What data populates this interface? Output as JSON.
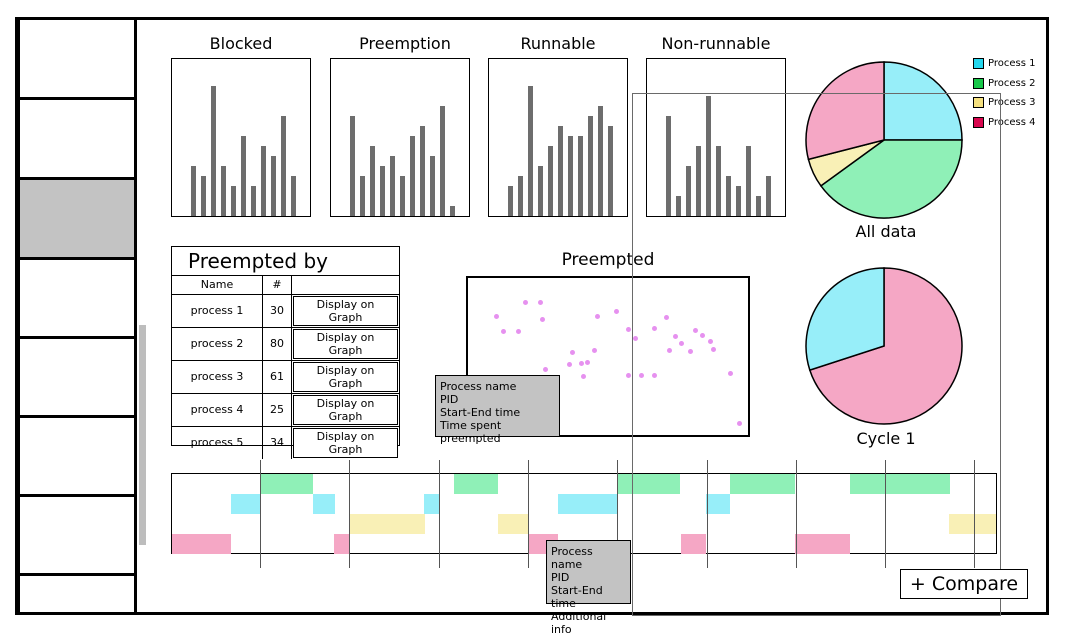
{
  "colors": {
    "process1": "#97eef9",
    "process2": "#8ff0b7",
    "process3": "#f9f0b6",
    "process4": "#f5a7c5",
    "legend1": "#24d7ee",
    "legend2": "#18c84a",
    "legend3": "#f5e07f",
    "legend4": "#d9074f",
    "bar": "#6d6d6d"
  },
  "sidebar": {
    "items": [
      "",
      "",
      "",
      "",
      "",
      "",
      "",
      ""
    ],
    "selected_index": 2
  },
  "charts": [
    {
      "title": "Blocked",
      "values": [
        5,
        4,
        13,
        5,
        3,
        8,
        3,
        7,
        6,
        10,
        4
      ],
      "max": 13
    },
    {
      "title": "Preemption",
      "values": [
        10,
        4,
        7,
        5,
        6,
        4,
        8,
        9,
        6,
        11,
        1
      ],
      "max": 13
    },
    {
      "title": "Runnable",
      "values": [
        3,
        4,
        13,
        5,
        7,
        9,
        8,
        8,
        10,
        11,
        9
      ],
      "max": 13
    },
    {
      "title": "Non-runnable",
      "values": [
        10,
        2,
        5,
        7,
        12,
        7,
        4,
        3,
        7,
        2,
        4
      ],
      "max": 13
    }
  ],
  "pies": {
    "all": {
      "label": "All data",
      "slices": [
        {
          "name": "Process 1",
          "value": 25,
          "color": "#97eef9"
        },
        {
          "name": "Process 2",
          "value": 40,
          "color": "#8ff0b7"
        },
        {
          "name": "Process 3",
          "value": 6,
          "color": "#f9f0b6"
        },
        {
          "name": "Process 4",
          "value": 29,
          "color": "#f5a7c5"
        }
      ]
    },
    "cycle": {
      "label": "Cycle 1",
      "slices": [
        {
          "name": "Process 4",
          "value": 70,
          "color": "#f5a7c5"
        },
        {
          "name": "Process 1",
          "value": 30,
          "color": "#97eef9"
        }
      ]
    }
  },
  "legend": [
    "Process 1",
    "Process 2",
    "Process 3",
    "Process 4"
  ],
  "preempted_by": {
    "title": "Preempted by",
    "headers": [
      "Name",
      "#"
    ],
    "button_label": "Display on Graph",
    "rows": [
      {
        "name": "process 1",
        "count": "30"
      },
      {
        "name": "process 2",
        "count": "80"
      },
      {
        "name": "process 3",
        "count": "61"
      },
      {
        "name": "process 4",
        "count": "25"
      },
      {
        "name": "process 5",
        "count": "34"
      }
    ]
  },
  "preempted": {
    "title": "Preempted"
  },
  "tooltip_scatter": [
    "Process name",
    "PID",
    "Start-End time",
    "Time spent preempted"
  ],
  "tooltip_timeline": [
    "Process name",
    "PID",
    "Start-End time",
    "Additional info"
  ],
  "compare_button": "+ Compare"
}
